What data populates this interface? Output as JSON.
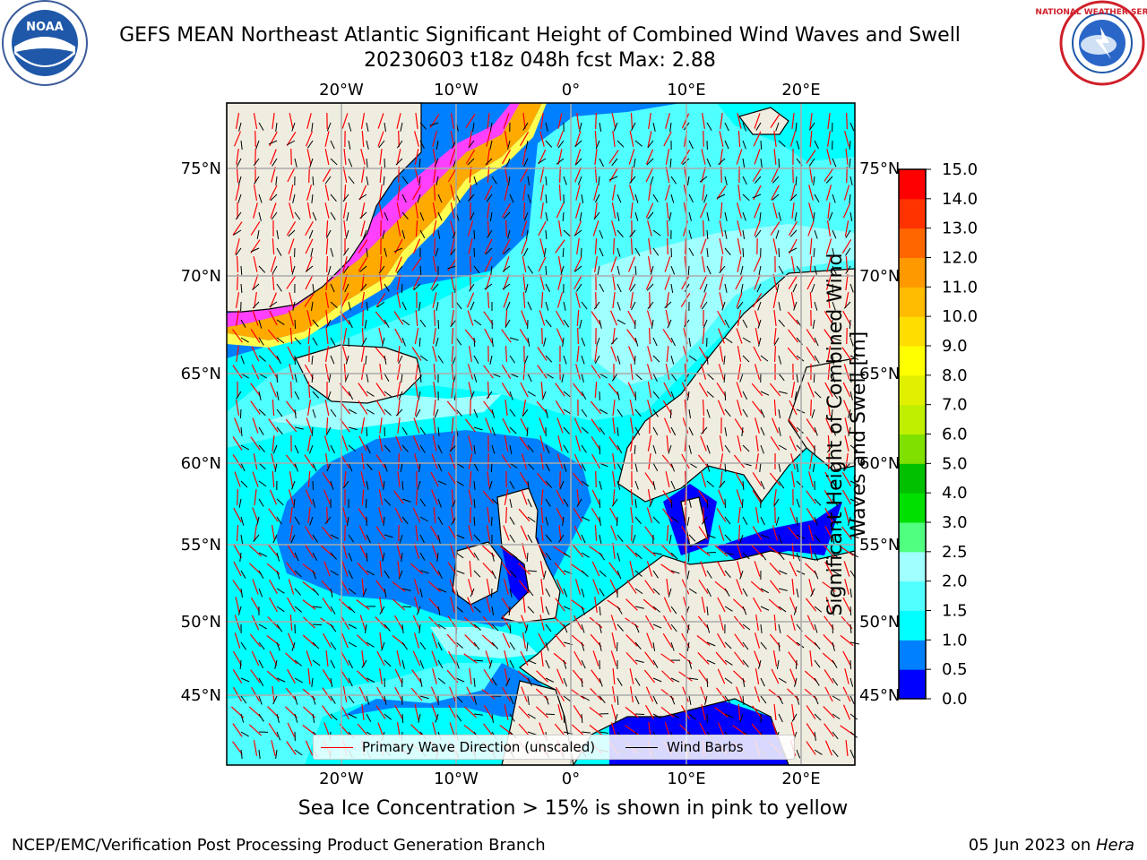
{
  "title": {
    "line1": "GEFS MEAN Northeast Atlantic Significant Height of Combined Wind Waves and Swell",
    "line2": "20230603 t18z 048h fcst   Max: 2.88"
  },
  "logos": {
    "left": {
      "name": "NOAA",
      "text": "NOAA",
      "ring_text": "NATIONAL OCEANIC AND ATMOSPHERIC ADMINISTRATION · U.S. DEPARTMENT OF COMMERCE"
    },
    "right": {
      "name": "National Weather Service",
      "ring_text": "NATIONAL WEATHER SERVICE"
    }
  },
  "map": {
    "lon_ticks": [
      "20°W",
      "10°W",
      "0°",
      "10°E",
      "20°E"
    ],
    "lat_ticks": [
      "75°N",
      "70°N",
      "65°N",
      "60°N",
      "55°N",
      "50°N",
      "45°N"
    ],
    "extent": {
      "lon": [
        -29.5,
        24.5
      ],
      "lat": [
        41,
        78
      ]
    },
    "legend": {
      "wave": "Primary Wave Direction (unscaled)",
      "wind": "Wind Barbs",
      "wave_color": "#ff0000",
      "wind_color": "#000000"
    }
  },
  "colorbar": {
    "title": "Significant Height of Combined Wind Waves and Swell [m]",
    "labels": [
      "0.0",
      "0.5",
      "1.0",
      "1.5",
      "2.0",
      "2.5",
      "3.0",
      "4.0",
      "5.0",
      "6.0",
      "7.0",
      "8.0",
      "9.0",
      "10.0",
      "11.0",
      "12.0",
      "13.0",
      "14.0",
      "15.0"
    ],
    "colors": [
      "#0000ff",
      "#0080ff",
      "#00ffff",
      "#50ffff",
      "#a0ffff",
      "#50ff80",
      "#00e000",
      "#00c000",
      "#80e000",
      "#c0f000",
      "#e0f000",
      "#ffff00",
      "#ffdd00",
      "#ffbb00",
      "#ff9900",
      "#ff6600",
      "#ff3300",
      "#ff0000"
    ],
    "land_color": "#efede0"
  },
  "footer": {
    "note": "Sea Ice Concentration > 15% is shown in pink to yellow",
    "credit_left": "NCEP/EMC/Verification Post Processing Product Generation Branch",
    "date": "05 Jun 2023 on ",
    "host": "Hera"
  }
}
